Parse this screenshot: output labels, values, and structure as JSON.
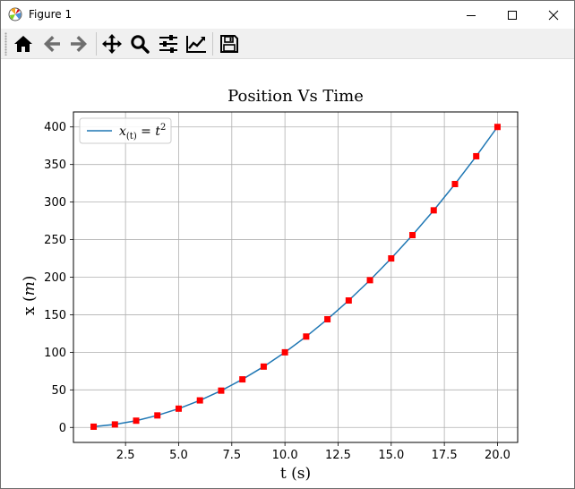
{
  "window": {
    "title": "Figure 1",
    "icon": "matplotlib-icon",
    "controls": [
      "minimize-icon",
      "maximize-icon",
      "close-icon"
    ]
  },
  "toolbar": {
    "items": [
      {
        "name": "home",
        "icon": "home-icon"
      },
      {
        "name": "back",
        "icon": "arrow-left-icon"
      },
      {
        "name": "forward",
        "icon": "arrow-right-icon"
      },
      {
        "name": "pan",
        "icon": "move-icon"
      },
      {
        "name": "zoom",
        "icon": "magnifier-icon"
      },
      {
        "name": "configure-subplots",
        "icon": "sliders-icon"
      },
      {
        "name": "edit-axis",
        "icon": "line-chart-icon"
      },
      {
        "name": "save",
        "icon": "floppy-disk-icon"
      }
    ]
  },
  "chart_data": {
    "type": "line",
    "title": "Position Vs Time",
    "xlabel": "t (s)",
    "ylabel_prefix": "x (",
    "ylabel_var": "m",
    "ylabel_suffix": ")",
    "xlim": [
      0.05,
      20.95
    ],
    "ylim": [
      -19.95,
      419.95
    ],
    "xticks": [
      2.5,
      5.0,
      7.5,
      10.0,
      12.5,
      15.0,
      17.5,
      20.0
    ],
    "xtick_labels": [
      "2.5",
      "5.0",
      "7.5",
      "10.0",
      "12.5",
      "15.0",
      "17.5",
      "20.0"
    ],
    "yticks": [
      0,
      50,
      100,
      150,
      200,
      250,
      300,
      350,
      400
    ],
    "ytick_labels": [
      "0",
      "50",
      "100",
      "150",
      "200",
      "250",
      "300",
      "350",
      "400"
    ],
    "grid": true,
    "legend_position": "upper-left",
    "series": [
      {
        "name": "x(t) = t^2",
        "style": "line",
        "color": "#1f77b4",
        "x": [
          1,
          2,
          3,
          4,
          5,
          6,
          7,
          8,
          9,
          10,
          11,
          12,
          13,
          14,
          15,
          16,
          17,
          18,
          19,
          20
        ],
        "y": [
          1,
          4,
          9,
          16,
          25,
          36,
          49,
          64,
          81,
          100,
          121,
          144,
          169,
          196,
          225,
          256,
          289,
          324,
          361,
          400
        ]
      },
      {
        "style": "markers",
        "marker": "square",
        "color": "#ff0000",
        "x": [
          1,
          2,
          3,
          4,
          5,
          6,
          7,
          8,
          9,
          10,
          11,
          12,
          13,
          14,
          15,
          16,
          17,
          18,
          19,
          20
        ],
        "y": [
          1,
          4,
          9,
          16,
          25,
          36,
          49,
          64,
          81,
          100,
          121,
          144,
          169,
          196,
          225,
          256,
          289,
          324,
          361,
          400
        ]
      }
    ]
  }
}
